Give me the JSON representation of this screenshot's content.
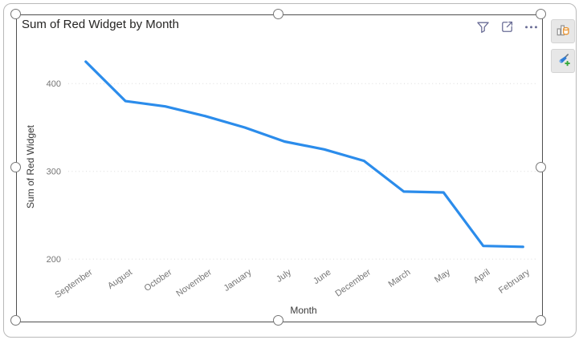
{
  "chart_data": {
    "type": "line",
    "title": "Sum of Red Widget by Month",
    "categories": [
      "September",
      "August",
      "October",
      "November",
      "January",
      "July",
      "June",
      "December",
      "March",
      "May",
      "April",
      "February"
    ],
    "series": [
      {
        "name": "Sum of Red Widget",
        "values": [
          425,
          380,
          374,
          363,
          350,
          334,
          325,
          312,
          277,
          276,
          215,
          214
        ]
      }
    ],
    "xlabel": "Month",
    "ylabel": "Sum of Red Widget",
    "ylim": [
      195,
      445
    ],
    "yticks": [
      200,
      300,
      400
    ],
    "grid": "horizontal-dotted",
    "legend": "none",
    "x_tick_rotation_deg": -35
  },
  "visual": {
    "selected": true,
    "header_icons": [
      {
        "name": "filter",
        "icon": "funnel-icon"
      },
      {
        "name": "focus-mode",
        "icon": "expand-arrow-icon"
      },
      {
        "name": "more-options",
        "icon": "ellipsis-icon"
      }
    ]
  },
  "side_toolbar": {
    "buttons": [
      {
        "name": "build-visual",
        "icon": "bar-chart-with-paint-bucket-icon"
      },
      {
        "name": "format-visual",
        "icon": "paintbrush-with-plus-icon"
      }
    ]
  },
  "colors": {
    "line": "#2B8CEB",
    "grid": "#DBDBDB",
    "tick_label": "#757575",
    "axis_text": "#3A3A3A",
    "title_text": "#252423",
    "header_icon": "#6A6D96",
    "selection_frame": "#4F4F4F",
    "outer_border": "#B9B9B9",
    "button_bg": "#E7E7E7",
    "bucket_orange": "#E8922E",
    "brush_blue": "#2E7CD6",
    "plus_green": "#36A93C"
  }
}
